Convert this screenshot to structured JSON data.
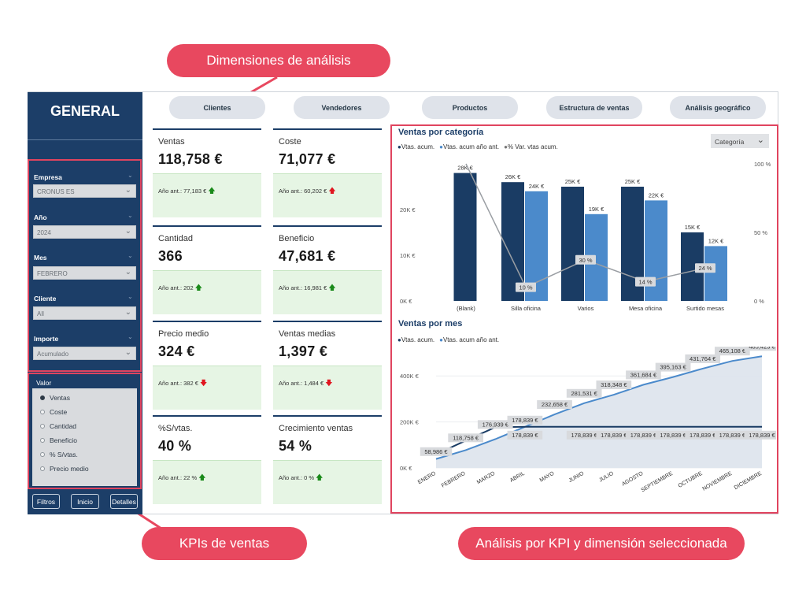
{
  "callouts": {
    "dimensiones": "Dimensiones de análisis",
    "kpis": "KPIs de ventas",
    "analisis": "Análisis por KPI y dimensión seleccionada"
  },
  "sidebar": {
    "title": "GENERAL",
    "filters": [
      {
        "label": "Empresa",
        "value": "CRONUS ES"
      },
      {
        "label": "Año",
        "value": "2024"
      },
      {
        "label": "Mes",
        "value": "FEBRERO"
      },
      {
        "label": "Cliente",
        "value": "All"
      },
      {
        "label": "Importe",
        "value": "Acumulado"
      }
    ],
    "valor": {
      "header": "Valor",
      "options": [
        "Ventas",
        "Coste",
        "Cantidad",
        "Beneficio",
        "% S/vtas.",
        "Precio medio"
      ],
      "selected": "Ventas"
    },
    "buttons": {
      "filtros": "Filtros",
      "inicio": "Inicio",
      "detalles": "Detalles"
    }
  },
  "tabs": [
    "Clientes",
    "Vendedores",
    "Productos",
    "Estructura de ventas",
    "Análisis geográfico"
  ],
  "kpis": [
    {
      "title": "Ventas",
      "value": "118,758 €",
      "prev": "Año ant.: 77,183 €",
      "trend": "up"
    },
    {
      "title": "Coste",
      "value": "71,077 €",
      "prev": "Año ant.: 60,202 €",
      "trend": "up-red"
    },
    {
      "title": "Cantidad",
      "value": "366",
      "prev": "Año ant.: 202",
      "trend": "up"
    },
    {
      "title": "Beneficio",
      "value": "47,681 €",
      "prev": "Año ant.: 16,981 €",
      "trend": "up"
    },
    {
      "title": "Precio medio",
      "value": "324 €",
      "prev": "Año ant.: 382 €",
      "trend": "down"
    },
    {
      "title": "Ventas medias",
      "value": "1,397 €",
      "prev": "Año ant.: 1,484 €",
      "trend": "down"
    },
    {
      "title": "%S/vtas.",
      "value": "40 %",
      "prev": "Año ant.: 22 %",
      "trend": "up"
    },
    {
      "title": "Crecimiento ventas",
      "value": "54 %",
      "prev": "Año ant.: 0 %",
      "trend": "up"
    }
  ],
  "chart_cat": {
    "title": "Ventas por categoría",
    "legend": [
      "Vtas. acum.",
      "Vtas. acum año ant.",
      "% Var. vtas acum."
    ],
    "dropdown": "Categoría",
    "colors": {
      "cur": "#1a3c64",
      "prev": "#4b8acb",
      "line": "#9a9ea3"
    }
  },
  "chart_mes": {
    "title": "Ventas por mes",
    "legend": [
      "Vtas. acum.",
      "Vtas. acum año ant."
    ],
    "colors": {
      "cur": "#1a3c64",
      "prev": "#4b8acb"
    }
  },
  "chart_data": [
    {
      "type": "bar",
      "title": "Ventas por categoría",
      "categories": [
        "(Blank)",
        "Silla oficina",
        "Varios",
        "Mesa oficina",
        "Surtido mesas"
      ],
      "series": [
        {
          "name": "Vtas. acum.",
          "values": [
            28000,
            26000,
            25000,
            25000,
            15000
          ],
          "labels": [
            "28K €",
            "26K €",
            "25K €",
            "25K €",
            "15K €"
          ]
        },
        {
          "name": "Vtas. acum año ant.",
          "values": [
            null,
            24000,
            19000,
            22000,
            12000
          ],
          "labels": [
            "",
            "24K €",
            "19K €",
            "22K €",
            "12K €"
          ]
        },
        {
          "name": "% Var. vtas acum.",
          "values": [
            100,
            10,
            30,
            14,
            24
          ],
          "labels": [
            "",
            "10 %",
            "30 %",
            "14 %",
            "24 %"
          ]
        }
      ],
      "y_ticks": [
        "0K €",
        "10K €",
        "20K €"
      ],
      "y2_ticks": [
        "0 %",
        "50 %",
        "100 %"
      ],
      "ylim": [
        0,
        30000
      ],
      "y2lim": [
        0,
        100
      ]
    },
    {
      "type": "line",
      "title": "Ventas por mes",
      "categories": [
        "ENERO",
        "FEBRERO",
        "MARZO",
        "ABRIL",
        "MAYO",
        "JUNIO",
        "JULIO",
        "AGOSTO",
        "SEPTIEMBRE",
        "OCTUBRE",
        "NOVIEMBRE",
        "DICIEMBRE"
      ],
      "series": [
        {
          "name": "Vtas. acum.",
          "values": [
            58986,
            118758,
            176939,
            178839,
            178839,
            178839,
            178839,
            178839,
            178839,
            178839,
            178839,
            178839
          ],
          "labels": [
            "58,986 €",
            "118,758 €",
            "176,939 €",
            "178,839 €",
            "",
            "178,839 €",
            "178,839 €",
            "178,839 €",
            "178,839 €",
            "178,839 €",
            "178,839 €",
            "178,839 €"
          ]
        },
        {
          "name": "Vtas. acum año ant.",
          "values": [
            39000,
            77183,
            125000,
            178839,
            232658,
            281531,
            318348,
            361684,
            395163,
            431764,
            465108,
            485423
          ],
          "labels": [
            "",
            "",
            "",
            "178,839 €",
            "232,658 €",
            "281,531 €",
            "318,348 €",
            "361,684 €",
            "395,163 €",
            "431,764 €",
            "465,108 €",
            "485,423 €"
          ]
        }
      ],
      "y_ticks": [
        "0K €",
        "200K €",
        "400K €"
      ],
      "ylim": [
        0,
        500000
      ]
    }
  ]
}
